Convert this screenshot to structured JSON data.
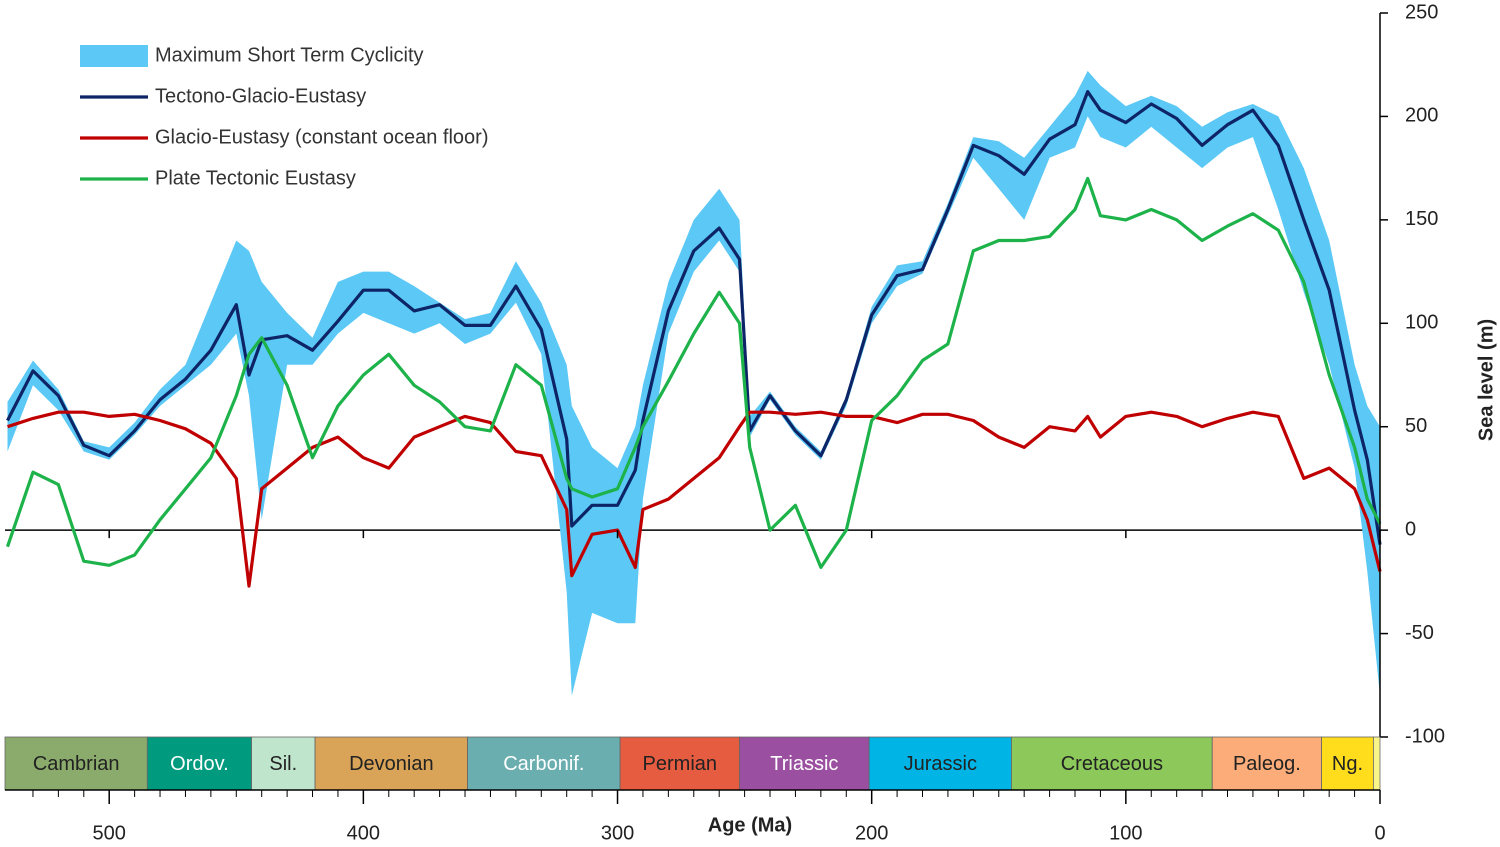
{
  "chart_data": {
    "type": "line",
    "xlabel": "Age (Ma)",
    "ylabel": "Sea level (m)",
    "xlim": [
      541,
      0
    ],
    "ylim": [
      -100,
      250
    ],
    "xticks": [
      500,
      400,
      300,
      200,
      100,
      0
    ],
    "xminorticks": [
      530,
      520,
      510,
      490,
      480,
      470,
      460,
      450,
      440,
      430,
      420,
      410,
      390,
      380,
      370,
      360,
      350,
      340,
      330,
      320,
      310,
      290,
      280,
      270,
      260,
      250,
      240,
      230,
      220,
      210,
      190,
      180,
      170,
      160,
      150,
      140,
      130,
      120,
      110,
      90,
      80,
      70,
      60,
      50,
      40,
      30,
      20,
      10
    ],
    "yticks": [
      250,
      200,
      150,
      100,
      50,
      0,
      -50,
      -100
    ],
    "hline": 0,
    "legend": "upper left",
    "x": [
      540,
      530,
      520,
      510,
      500,
      490,
      480,
      470,
      460,
      450,
      445,
      440,
      430,
      420,
      410,
      400,
      390,
      380,
      370,
      360,
      350,
      340,
      330,
      320,
      318,
      310,
      300,
      293,
      290,
      280,
      270,
      260,
      252,
      248,
      240,
      230,
      220,
      210,
      200,
      190,
      180,
      170,
      160,
      150,
      140,
      130,
      120,
      115,
      110,
      100,
      90,
      80,
      70,
      60,
      50,
      40,
      30,
      20,
      10,
      5,
      0
    ],
    "series": [
      {
        "name": "Maximum Short Term Cyclicity",
        "type": "band",
        "color": "#5bc8f5",
        "upper": [
          62,
          82,
          68,
          43,
          40,
          52,
          68,
          80,
          110,
          140,
          135,
          120,
          105,
          93,
          120,
          125,
          125,
          118,
          110,
          102,
          105,
          130,
          110,
          80,
          60,
          40,
          30,
          50,
          70,
          120,
          150,
          165,
          150,
          55,
          67,
          50,
          38,
          65,
          108,
          128,
          130,
          158,
          190,
          188,
          180,
          195,
          210,
          222,
          215,
          205,
          210,
          205,
          195,
          202,
          206,
          200,
          175,
          140,
          80,
          60,
          50
        ],
        "lower": [
          38,
          70,
          58,
          38,
          34,
          46,
          60,
          70,
          80,
          95,
          65,
          5,
          80,
          80,
          95,
          105,
          100,
          95,
          100,
          90,
          95,
          110,
          85,
          -30,
          -80,
          -40,
          -45,
          -45,
          15,
          95,
          125,
          140,
          125,
          45,
          63,
          46,
          34,
          60,
          100,
          118,
          124,
          152,
          180,
          165,
          150,
          180,
          185,
          200,
          190,
          185,
          195,
          185,
          175,
          185,
          190,
          155,
          115,
          80,
          30,
          -20,
          -80
        ]
      },
      {
        "name": "Tectono-Glacio-Eustasy",
        "type": "line",
        "color": "#0d2466",
        "values": [
          53,
          77,
          65,
          41,
          36,
          48,
          63,
          73,
          87,
          109,
          75,
          92,
          94,
          87,
          101,
          116,
          116,
          106,
          109,
          99,
          99,
          118,
          97,
          44,
          2,
          12,
          12,
          29,
          53,
          106,
          135,
          146,
          131,
          48,
          65,
          48,
          36,
          63,
          104,
          123,
          126,
          155,
          186,
          181,
          172,
          189,
          196,
          212,
          203,
          197,
          206,
          199,
          186,
          196,
          203,
          186,
          150,
          116,
          58,
          34,
          -7
        ]
      },
      {
        "name": "Glacio-Eustasy (constant ocean floor)",
        "type": "line",
        "color": "#c00000",
        "values": [
          50,
          54,
          57,
          57,
          55,
          56,
          53,
          49,
          42,
          25,
          -27,
          20,
          30,
          40,
          45,
          35,
          30,
          45,
          50,
          55,
          52,
          38,
          36,
          10,
          -22,
          -2,
          0,
          -18,
          10,
          15,
          25,
          35,
          50,
          57,
          57,
          56,
          57,
          55,
          55,
          52,
          56,
          56,
          53,
          45,
          40,
          50,
          48,
          55,
          45,
          55,
          57,
          55,
          50,
          54,
          57,
          55,
          25,
          30,
          20,
          5,
          -20
        ]
      },
      {
        "name": "Plate Tectonic Eustasy",
        "type": "line",
        "color": "#1db34a",
        "values": [
          -8,
          28,
          22,
          -15,
          -17,
          -12,
          5,
          20,
          35,
          65,
          85,
          93,
          70,
          35,
          60,
          75,
          85,
          70,
          62,
          50,
          48,
          80,
          70,
          25,
          20,
          16,
          20,
          40,
          50,
          72,
          95,
          115,
          100,
          40,
          0,
          12,
          -18,
          0,
          53,
          65,
          82,
          90,
          135,
          140,
          140,
          142,
          155,
          170,
          152,
          150,
          155,
          150,
          140,
          147,
          153,
          145,
          120,
          75,
          40,
          15,
          3
        ]
      }
    ],
    "periods": [
      {
        "label": "Cambrian",
        "start": 541,
        "end": 485,
        "color": "#8aab6b",
        "text_color": "#222222"
      },
      {
        "label": "Ordov.",
        "start": 485,
        "end": 444,
        "color": "#009a7f",
        "text_color": "#ffffff"
      },
      {
        "label": "Sil.",
        "start": 444,
        "end": 419,
        "color": "#bfe5cc",
        "text_color": "#222222"
      },
      {
        "label": "Devonian",
        "start": 419,
        "end": 359,
        "color": "#d9a458",
        "text_color": "#222222"
      },
      {
        "label": "Carbonif.",
        "start": 359,
        "end": 299,
        "color": "#6aaeb0",
        "text_color": "#ffffff"
      },
      {
        "label": "Permian",
        "start": 299,
        "end": 252,
        "color": "#e65c40",
        "text_color": "#222222"
      },
      {
        "label": "Triassic",
        "start": 252,
        "end": 201,
        "color": "#9b4fa0",
        "text_color": "#ffffff"
      },
      {
        "label": "Jurassic",
        "start": 201,
        "end": 145,
        "color": "#00b4e6",
        "text_color": "#222222"
      },
      {
        "label": "Cretaceous",
        "start": 145,
        "end": 66,
        "color": "#8cc85a",
        "text_color": "#222222"
      },
      {
        "label": "Paleog.",
        "start": 66,
        "end": 23,
        "color": "#fbac78",
        "text_color": "#222222"
      },
      {
        "label": "Ng.",
        "start": 23,
        "end": 2.6,
        "color": "#ffdc1c",
        "text_color": "#222222"
      },
      {
        "label": null,
        "start": 2.6,
        "end": 0,
        "color": "#f9f48a",
        "text_color": "#222222"
      }
    ]
  }
}
